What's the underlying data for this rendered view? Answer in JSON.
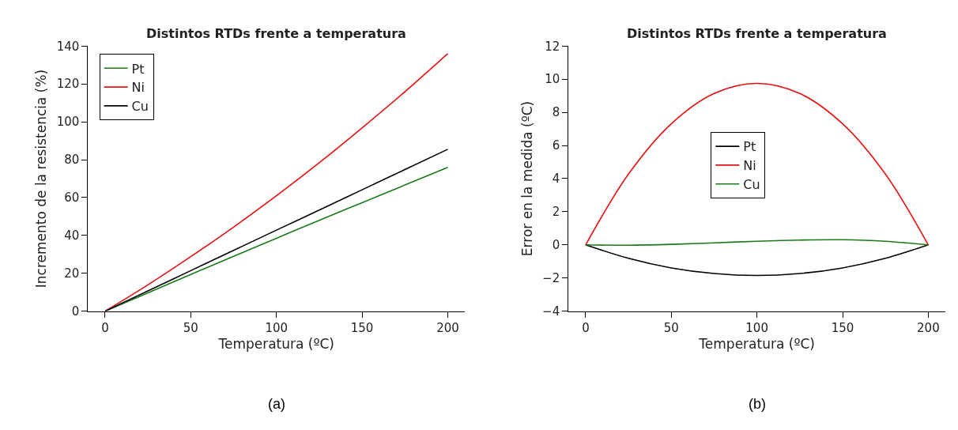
{
  "chart_data": [
    {
      "type": "line",
      "title": "Distintos RTDs frente a temperatura",
      "xlabel": "Temperatura (ºC)",
      "ylabel": "Incremento de la resistencia (%)",
      "x": [
        0,
        25,
        50,
        75,
        100,
        125,
        150,
        175,
        200
      ],
      "series": [
        {
          "name": "Pt",
          "color": "#1a7a1a",
          "values": [
            0,
            9.7,
            19.4,
            29.0,
            38.5,
            48.0,
            57.3,
            66.6,
            75.9
          ]
        },
        {
          "name": "Ni",
          "color": "#e81010",
          "values": [
            0,
            13.9,
            28.8,
            44.4,
            61,
            78.4,
            96.8,
            115.9,
            136
          ]
        },
        {
          "name": "Cu",
          "color": "#000000",
          "values": [
            0,
            10.7,
            21.4,
            32.1,
            42.8,
            53.4,
            64.1,
            74.8,
            85.5
          ]
        }
      ],
      "xlim": [
        -10,
        210
      ],
      "xticks": [
        0,
        50,
        100,
        150,
        200
      ],
      "ylim": [
        0,
        140
      ],
      "yticks": [
        0,
        20,
        40,
        60,
        80,
        100,
        120,
        140
      ],
      "legend": "top left",
      "annotations": [
        "(a)"
      ]
    },
    {
      "type": "line",
      "title": "Distintos RTDs frente a temperatura",
      "xlabel": "Temperatura (ºC)",
      "ylabel": "Error en la medida (ºC)",
      "x": [
        0,
        25,
        50,
        75,
        100,
        125,
        150,
        175,
        200
      ],
      "series": [
        {
          "name": "Pt",
          "color": "#000000",
          "values": [
            0,
            -0.81,
            -1.39,
            -1.73,
            -1.85,
            -1.73,
            -1.39,
            -0.81,
            0
          ]
        },
        {
          "name": "Ni",
          "color": "#e81010",
          "values": [
            0,
            4.27,
            7.31,
            9.14,
            9.75,
            9.14,
            7.31,
            4.27,
            0
          ]
        },
        {
          "name": "Cu",
          "color": "#1a7a1a",
          "values": [
            0,
            -0.02,
            0.03,
            0.12,
            0.22,
            0.29,
            0.31,
            0.22,
            0
          ]
        }
      ],
      "xlim": [
        -10,
        210
      ],
      "xticks": [
        0,
        50,
        100,
        150,
        200
      ],
      "ylim": [
        -4,
        12
      ],
      "yticks": [
        -4,
        -2,
        0,
        2,
        4,
        6,
        8,
        10,
        12
      ],
      "legend": "center",
      "annotations": [
        "(b)"
      ]
    }
  ]
}
